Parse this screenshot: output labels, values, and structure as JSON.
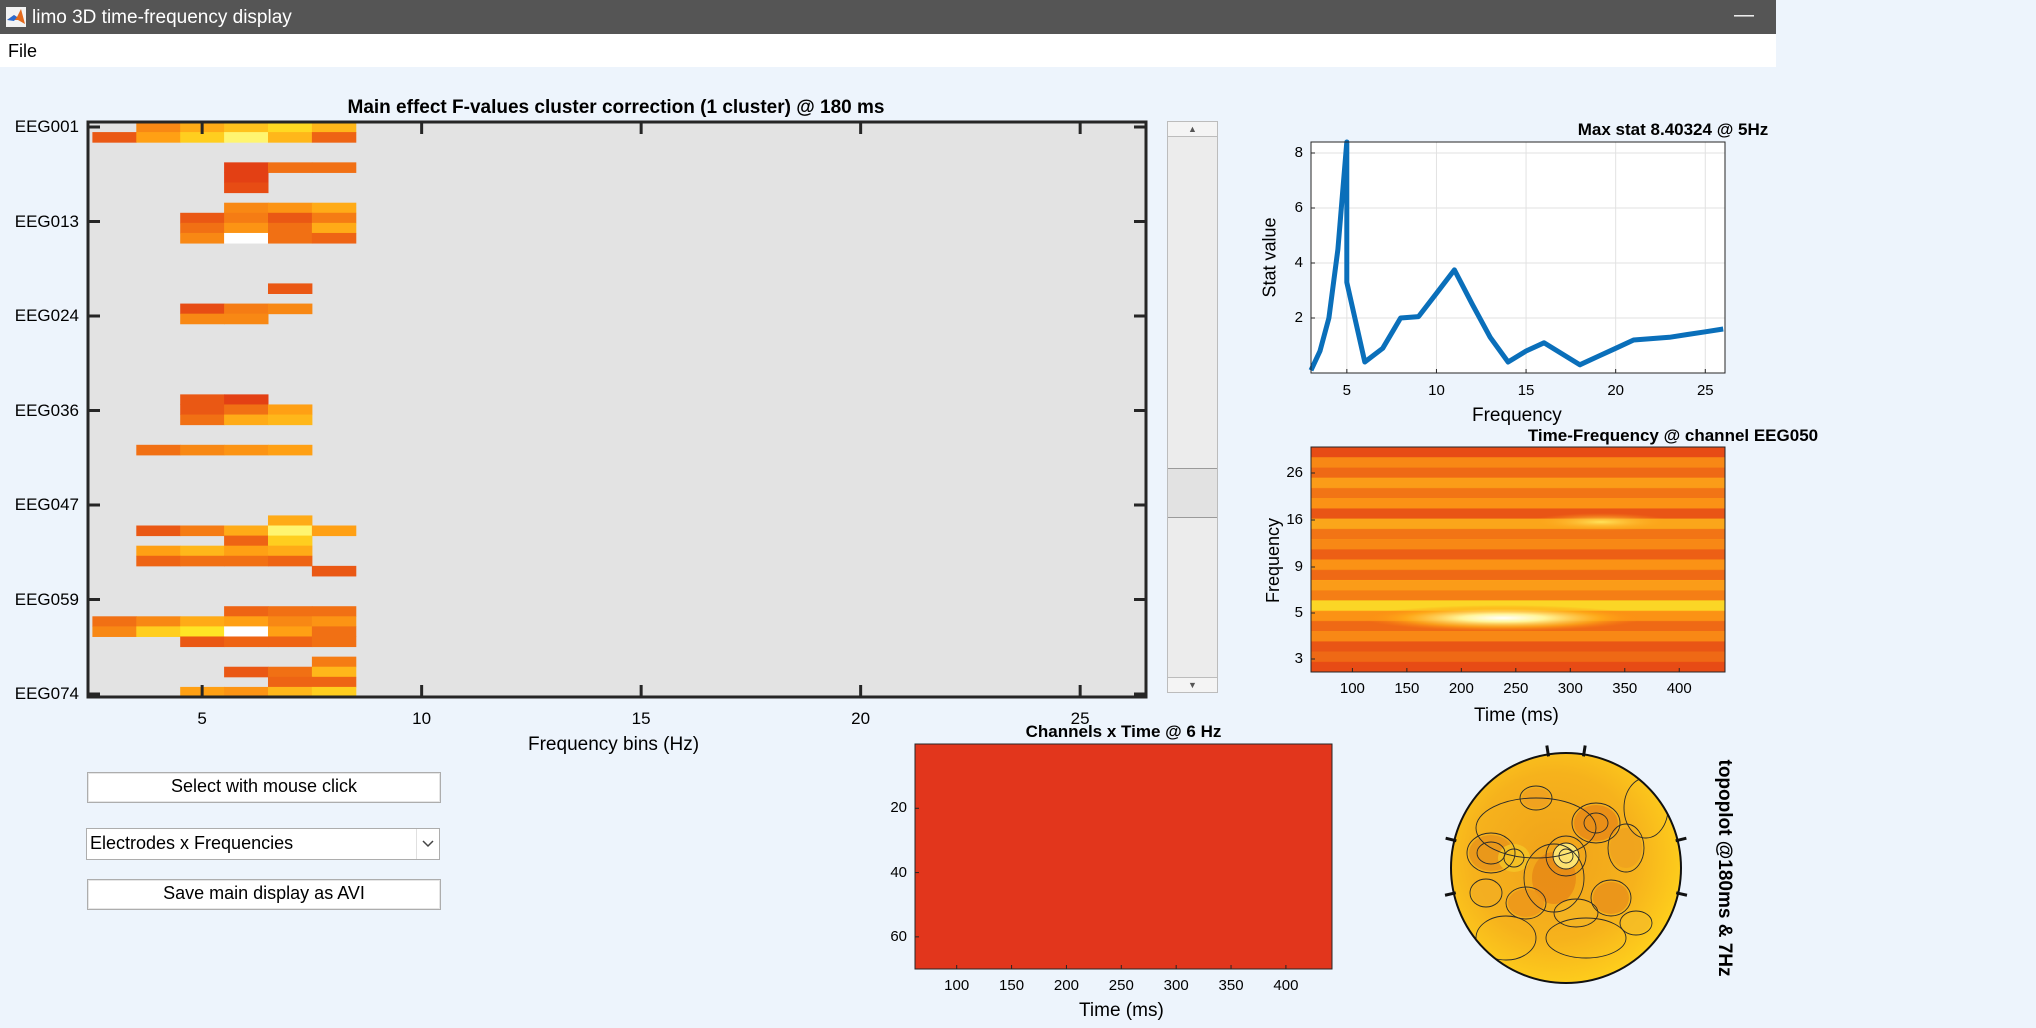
{
  "window": {
    "title": "limo 3D time-frequency display"
  },
  "menu": {
    "file": "File"
  },
  "main_plot": {
    "title": "Main effect F-values cluster correction (1 cluster) @ 180 ms",
    "xlabel": "Frequency bins (Hz)",
    "channels": [
      "EEG001",
      "EEG013",
      "EEG024",
      "EEG036",
      "EEG047",
      "EEG059",
      "EEG074"
    ],
    "xticks": [
      "5",
      "10",
      "15",
      "20",
      "25"
    ]
  },
  "max_stat_plot": {
    "title": "Max stat 8.40324 @ 5Hz",
    "xlabel": "Frequency",
    "ylabel": "Stat value"
  },
  "tf_plot": {
    "title": "Time-Frequency @ channel EEG050",
    "xlabel": "Time (ms)",
    "ylabel": "Frequency"
  },
  "ct_plot": {
    "title": "Channels x Time @ 6 Hz",
    "xlabel": "Time (ms)"
  },
  "topo": {
    "label": "topoplot @180ms & 7Hz"
  },
  "controls": {
    "select_button": "Select with mouse click",
    "view_dropdown": "Electrodes x Frequencies",
    "save_button": "Save main display as AVI"
  },
  "chart_data": [
    {
      "type": "heatmap",
      "title": "Main effect F-values cluster correction (1 cluster) @ 180 ms",
      "xlabel": "Frequency bins (Hz)",
      "x": [
        3,
        4,
        5,
        6,
        7,
        8,
        9,
        10,
        11,
        12,
        13,
        14,
        15,
        16,
        17,
        18,
        19,
        20,
        21,
        22,
        23,
        24,
        25,
        26
      ],
      "xlim": [
        2.4,
        26.5
      ],
      "y_tick_labels": [
        "EEG001",
        "EEG013",
        "EEG024",
        "EEG036",
        "EEG047",
        "EEG059",
        "EEG074"
      ],
      "n_rows": 57,
      "background_color": "#e3e3e3",
      "cells": [
        {
          "row": 0,
          "f": 4,
          "v": 0.4
        },
        {
          "row": 0,
          "f": 5,
          "v": 0.55
        },
        {
          "row": 0,
          "f": 6,
          "v": 0.65
        },
        {
          "row": 0,
          "f": 7,
          "v": 0.75
        },
        {
          "row": 0,
          "f": 8,
          "v": 0.6
        },
        {
          "row": 1,
          "f": 3,
          "v": 0.2
        },
        {
          "row": 1,
          "f": 4,
          "v": 0.5
        },
        {
          "row": 1,
          "f": 5,
          "v": 0.7
        },
        {
          "row": 1,
          "f": 6,
          "v": 0.9
        },
        {
          "row": 1,
          "f": 7,
          "v": 0.6
        },
        {
          "row": 1,
          "f": 8,
          "v": 0.25
        },
        {
          "row": 4,
          "f": 6,
          "v": 0.1
        },
        {
          "row": 4,
          "f": 7,
          "v": 0.3
        },
        {
          "row": 4,
          "f": 8,
          "v": 0.3
        },
        {
          "row": 5,
          "f": 6,
          "v": 0.1
        },
        {
          "row": 6,
          "f": 6,
          "v": 0.15
        },
        {
          "row": 8,
          "f": 6,
          "v": 0.4
        },
        {
          "row": 8,
          "f": 7,
          "v": 0.45
        },
        {
          "row": 8,
          "f": 8,
          "v": 0.55
        },
        {
          "row": 9,
          "f": 5,
          "v": 0.2
        },
        {
          "row": 9,
          "f": 6,
          "v": 0.35
        },
        {
          "row": 9,
          "f": 7,
          "v": 0.2
        },
        {
          "row": 9,
          "f": 8,
          "v": 0.35
        },
        {
          "row": 10,
          "f": 5,
          "v": 0.3
        },
        {
          "row": 10,
          "f": 6,
          "v": 0.45
        },
        {
          "row": 10,
          "f": 7,
          "v": 0.3
        },
        {
          "row": 10,
          "f": 8,
          "v": 0.55
        },
        {
          "row": 11,
          "f": 5,
          "v": 0.4
        },
        {
          "row": 11,
          "f": 6,
          "v": 1.0
        },
        {
          "row": 11,
          "f": 7,
          "v": 0.3
        },
        {
          "row": 11,
          "f": 8,
          "v": 0.25
        },
        {
          "row": 16,
          "f": 7,
          "v": 0.2
        },
        {
          "row": 18,
          "f": 5,
          "v": 0.15
        },
        {
          "row": 18,
          "f": 6,
          "v": 0.35
        },
        {
          "row": 18,
          "f": 7,
          "v": 0.4
        },
        {
          "row": 19,
          "f": 5,
          "v": 0.4
        },
        {
          "row": 19,
          "f": 6,
          "v": 0.4
        },
        {
          "row": 27,
          "f": 5,
          "v": 0.2
        },
        {
          "row": 27,
          "f": 6,
          "v": 0.1
        },
        {
          "row": 28,
          "f": 5,
          "v": 0.2
        },
        {
          "row": 28,
          "f": 6,
          "v": 0.3
        },
        {
          "row": 28,
          "f": 7,
          "v": 0.5
        },
        {
          "row": 29,
          "f": 5,
          "v": 0.3
        },
        {
          "row": 29,
          "f": 6,
          "v": 0.55
        },
        {
          "row": 29,
          "f": 7,
          "v": 0.6
        },
        {
          "row": 32,
          "f": 4,
          "v": 0.3
        },
        {
          "row": 32,
          "f": 5,
          "v": 0.4
        },
        {
          "row": 32,
          "f": 6,
          "v": 0.45
        },
        {
          "row": 32,
          "f": 7,
          "v": 0.5
        },
        {
          "row": 39,
          "f": 7,
          "v": 0.55
        },
        {
          "row": 40,
          "f": 4,
          "v": 0.2
        },
        {
          "row": 40,
          "f": 5,
          "v": 0.35
        },
        {
          "row": 40,
          "f": 6,
          "v": 0.55
        },
        {
          "row": 40,
          "f": 7,
          "v": 0.9
        },
        {
          "row": 40,
          "f": 8,
          "v": 0.5
        },
        {
          "row": 41,
          "f": 6,
          "v": 0.25
        },
        {
          "row": 41,
          "f": 7,
          "v": 0.7
        },
        {
          "row": 42,
          "f": 4,
          "v": 0.5
        },
        {
          "row": 42,
          "f": 5,
          "v": 0.6
        },
        {
          "row": 42,
          "f": 6,
          "v": 0.5
        },
        {
          "row": 42,
          "f": 7,
          "v": 0.55
        },
        {
          "row": 43,
          "f": 4,
          "v": 0.25
        },
        {
          "row": 43,
          "f": 5,
          "v": 0.3
        },
        {
          "row": 43,
          "f": 6,
          "v": 0.3
        },
        {
          "row": 43,
          "f": 7,
          "v": 0.25
        },
        {
          "row": 44,
          "f": 8,
          "v": 0.2
        },
        {
          "row": 48,
          "f": 6,
          "v": 0.25
        },
        {
          "row": 48,
          "f": 7,
          "v": 0.3
        },
        {
          "row": 48,
          "f": 8,
          "v": 0.3
        },
        {
          "row": 49,
          "f": 3,
          "v": 0.3
        },
        {
          "row": 49,
          "f": 4,
          "v": 0.4
        },
        {
          "row": 49,
          "f": 5,
          "v": 0.55
        },
        {
          "row": 49,
          "f": 6,
          "v": 0.5
        },
        {
          "row": 49,
          "f": 7,
          "v": 0.4
        },
        {
          "row": 49,
          "f": 8,
          "v": 0.45
        },
        {
          "row": 50,
          "f": 3,
          "v": 0.4
        },
        {
          "row": 50,
          "f": 4,
          "v": 0.7
        },
        {
          "row": 50,
          "f": 5,
          "v": 0.8
        },
        {
          "row": 50,
          "f": 6,
          "v": 1.0
        },
        {
          "row": 50,
          "f": 7,
          "v": 0.5
        },
        {
          "row": 50,
          "f": 8,
          "v": 0.3
        },
        {
          "row": 51,
          "f": 5,
          "v": 0.2
        },
        {
          "row": 51,
          "f": 6,
          "v": 0.25
        },
        {
          "row": 51,
          "f": 7,
          "v": 0.25
        },
        {
          "row": 51,
          "f": 8,
          "v": 0.3
        },
        {
          "row": 53,
          "f": 8,
          "v": 0.35
        },
        {
          "row": 54,
          "f": 6,
          "v": 0.2
        },
        {
          "row": 54,
          "f": 7,
          "v": 0.3
        },
        {
          "row": 54,
          "f": 8,
          "v": 0.6
        },
        {
          "row": 55,
          "f": 7,
          "v": 0.25
        },
        {
          "row": 55,
          "f": 8,
          "v": 0.25
        },
        {
          "row": 56,
          "f": 5,
          "v": 0.5
        },
        {
          "row": 56,
          "f": 6,
          "v": 0.45
        },
        {
          "row": 56,
          "f": 7,
          "v": 0.6
        },
        {
          "row": 56,
          "f": 8,
          "v": 0.7
        }
      ]
    },
    {
      "type": "line",
      "title": "Max stat 8.40324 @ 5Hz",
      "xlabel": "Frequency",
      "ylabel": "Stat value",
      "x": [
        3,
        3.5,
        4,
        4.5,
        5,
        5,
        6,
        7,
        8,
        9,
        10,
        11,
        12,
        13,
        14,
        15,
        16,
        17,
        18,
        19,
        20,
        21,
        22,
        23,
        24,
        25,
        26
      ],
      "y": [
        0.1,
        0.8,
        2.0,
        4.5,
        8.4,
        3.3,
        0.4,
        0.9,
        2.0,
        2.05,
        2.9,
        3.75,
        2.5,
        1.3,
        0.4,
        0.8,
        1.1,
        0.7,
        0.3,
        0.6,
        0.9,
        1.2,
        1.25,
        1.3,
        1.4,
        1.5,
        1.6
      ],
      "xlim": [
        3,
        26.1
      ],
      "ylim": [
        0,
        8.4
      ],
      "xticks": [
        5,
        10,
        15,
        20,
        25
      ],
      "yticks": [
        2,
        4,
        6,
        8
      ],
      "grid": true,
      "color": "#0a6fba"
    },
    {
      "type": "heatmap",
      "title": "Time-Frequency @ channel EEG050",
      "xlabel": "Time (ms)",
      "ylabel": "Frequency",
      "xticks": [
        100,
        150,
        200,
        250,
        300,
        350,
        400
      ],
      "xlim": [
        62,
        442
      ],
      "yticks": [
        3,
        5,
        9,
        16,
        26
      ]
    },
    {
      "type": "heatmap",
      "title": "Channels x Time @ 6 Hz",
      "xlabel": "Time (ms)",
      "xticks": [
        100,
        150,
        200,
        250,
        300,
        350,
        400
      ],
      "xlim": [
        62,
        442
      ],
      "yticks": [
        20,
        40,
        60
      ],
      "ylim": [
        0,
        70
      ],
      "uniform_color": "#e2361c"
    }
  ]
}
